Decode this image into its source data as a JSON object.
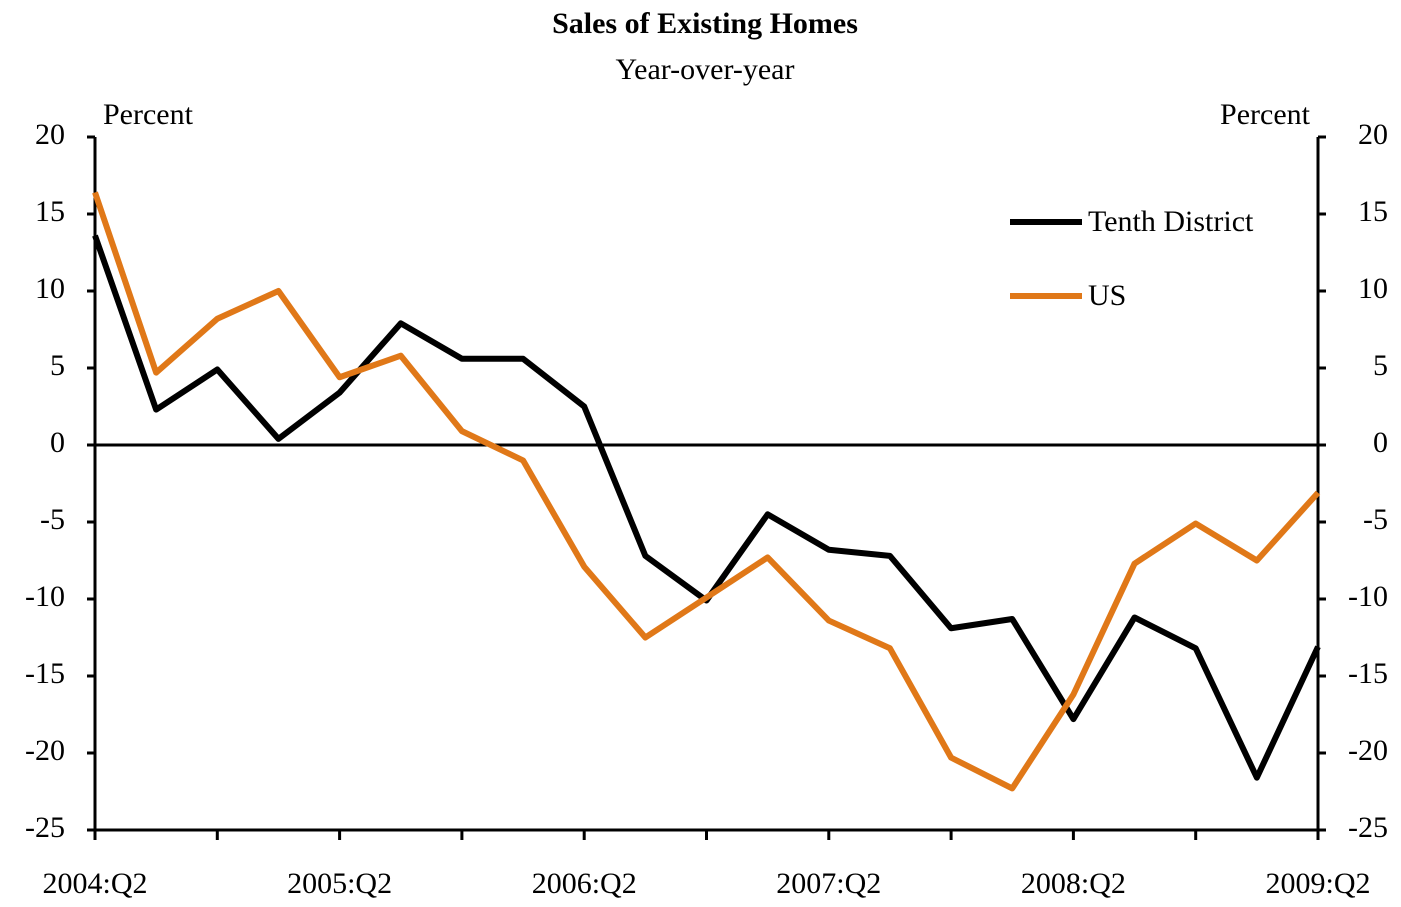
{
  "chart_data": {
    "type": "line",
    "title": "Sales of Existing Homes",
    "subtitle": "Year-over-year",
    "y_label": "Percent",
    "y2_label": "Percent",
    "categories": [
      "2004:Q2",
      null,
      null,
      null,
      "2005:Q2",
      null,
      null,
      null,
      "2006:Q2",
      null,
      null,
      null,
      "2007:Q2",
      null,
      null,
      null,
      "2008:Q2",
      null,
      null,
      null,
      "2009:Q2"
    ],
    "series": [
      {
        "name": "Tenth District",
        "color": "#000000",
        "values": [
          13.6,
          2.3,
          4.9,
          0.4,
          3.4,
          7.9,
          5.6,
          5.6,
          2.5,
          -7.2,
          -10.1,
          -4.5,
          -6.8,
          -7.2,
          -11.9,
          -11.3,
          -17.8,
          -11.2,
          -13.2,
          -21.6,
          -13.1
        ]
      },
      {
        "name": "US",
        "color": "#e07818",
        "values": [
          16.4,
          4.7,
          8.2,
          10.0,
          4.4,
          5.8,
          0.9,
          -1.0,
          -7.9,
          -12.5,
          -9.9,
          -7.3,
          -11.4,
          -13.2,
          -20.3,
          -22.3,
          -16.2,
          -7.7,
          -5.1,
          -7.5,
          -3.1
        ]
      }
    ],
    "ylim": [
      -25,
      20
    ],
    "yticks": [
      -25,
      -20,
      -15,
      -10,
      -5,
      0,
      5,
      10,
      15,
      20
    ],
    "y2lim": [
      -25,
      20
    ],
    "y2ticks": [
      -25,
      -20,
      -15,
      -10,
      -5,
      0,
      5,
      10,
      15,
      20
    ],
    "legend": "upper right"
  }
}
